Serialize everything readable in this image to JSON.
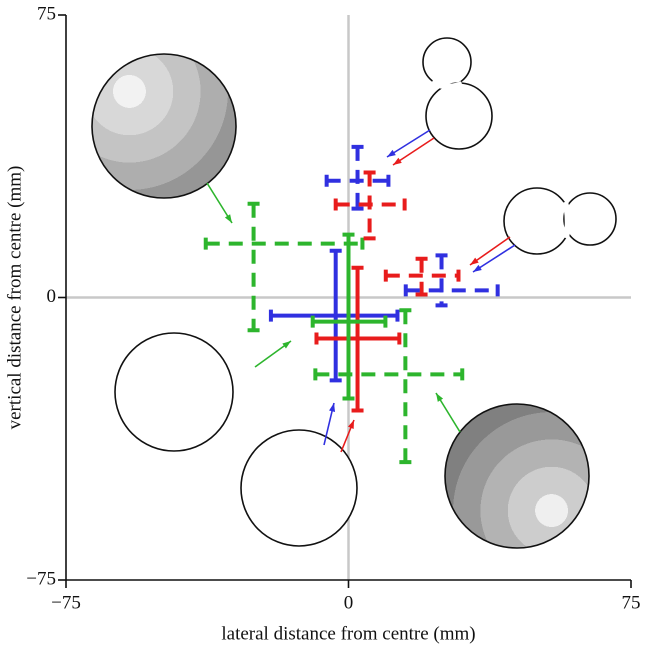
{
  "chart_data": {
    "type": "errorbar",
    "xlabel": "lateral distance from centre (mm)",
    "ylabel": "vertical distance from centre (mm)",
    "xlim": [
      -75,
      75
    ],
    "ylim": [
      -75,
      75
    ],
    "xticks": [
      {
        "value": -75,
        "label": "−75"
      },
      0,
      75
    ],
    "yticks": [
      {
        "value": -75,
        "label": "−75"
      },
      0,
      75
    ],
    "zero_lines": true,
    "series": [
      {
        "color": "#2db52d",
        "linestyle": "dashed",
        "x": -25.2,
        "y": 14.3,
        "xerr": [
          12.7,
          28.9
        ],
        "yerr": [
          23,
          10.6
        ]
      },
      {
        "color": "#2db52d",
        "linestyle": "dashed",
        "x": 15.1,
        "y": -20.4,
        "xerr": [
          23.9,
          15.1
        ],
        "yerr": [
          23.3,
          17
        ]
      },
      {
        "color": "#3030e0",
        "linestyle": "dashed",
        "x": 2.4,
        "y": 31,
        "xerr": [
          8.2,
          8.2
        ],
        "yerr": [
          7.4,
          9
        ]
      },
      {
        "color": "#e81c1c",
        "linestyle": "dashed",
        "x": 5.6,
        "y": 24.7,
        "xerr": [
          9,
          9.3
        ],
        "yerr": [
          9,
          8.5
        ]
      },
      {
        "color": "#e81c1c",
        "linestyle": "dashed",
        "x": 19.4,
        "y": 5.8,
        "xerr": [
          9.5,
          9.8
        ],
        "yerr": [
          5,
          4.5
        ]
      },
      {
        "color": "#3030e0",
        "linestyle": "dashed",
        "x": 24.7,
        "y": 1.9,
        "xerr": [
          9.5,
          14.9
        ],
        "yerr": [
          4,
          9.3
        ]
      },
      {
        "color": "#3030e0",
        "linestyle": "solid",
        "x": -3.4,
        "y": -4.8,
        "xerr": [
          17.2,
          16.4
        ],
        "yerr": [
          17.2,
          17.2
        ]
      },
      {
        "color": "#e81c1c",
        "linestyle": "solid",
        "x": 2.4,
        "y": -10.9,
        "xerr": [
          10.9,
          11.1
        ],
        "yerr": [
          19.1,
          18.8
        ]
      },
      {
        "color": "#2db52d",
        "linestyle": "solid",
        "x": 0,
        "y": -6.4,
        "xerr": [
          9.5,
          9.8
        ],
        "yerr": [
          20.4,
          23.1
        ]
      }
    ]
  }
}
